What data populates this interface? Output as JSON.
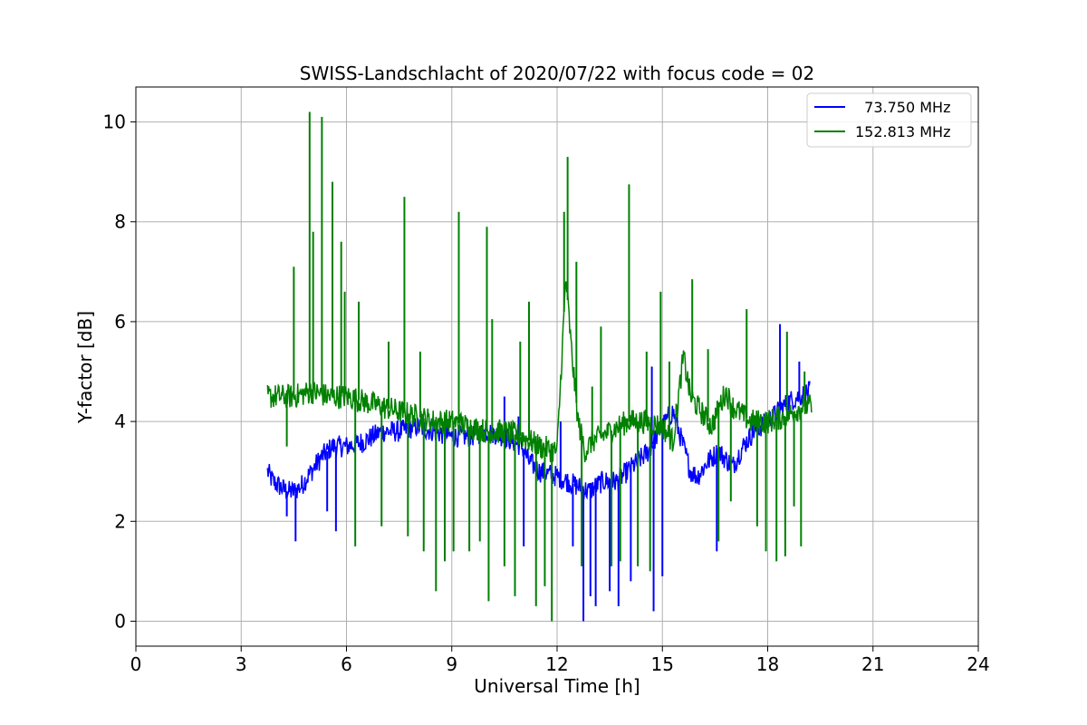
{
  "chart_data": {
    "type": "line",
    "title": "SWISS-Landschlacht of 2020/07/22 with focus code = 02",
    "xlabel": "Universal Time [h]",
    "ylabel": "Y-factor [dB]",
    "xlim": [
      0,
      24
    ],
    "ylim": [
      -0.5,
      10.7
    ],
    "xticks": [
      0,
      3,
      6,
      9,
      12,
      15,
      18,
      21,
      24
    ],
    "xtick_labels": [
      "0",
      "3",
      "6",
      "9",
      "12",
      "15",
      "18",
      "21",
      "24"
    ],
    "yticks": [
      0,
      2,
      4,
      6,
      8,
      10
    ],
    "ytick_labels": [
      "0",
      "2",
      "4",
      "6",
      "8",
      "10"
    ],
    "grid": true,
    "legend_position": "top-right",
    "series": [
      {
        "name": "  73.750 MHz",
        "color": "#0000ff",
        "x": [
          3.75,
          3.9,
          4.1,
          4.3,
          4.5,
          4.7,
          5.0,
          5.3,
          5.6,
          6.0,
          6.5,
          7.0,
          7.5,
          8.0,
          8.5,
          9.0,
          9.5,
          10.0,
          10.5,
          11.0,
          11.2,
          11.5,
          12.0,
          12.3,
          12.6,
          12.9,
          13.3,
          13.7,
          14.0,
          14.3,
          14.6,
          14.9,
          15.3,
          15.6,
          15.8,
          16.0,
          16.3,
          16.6,
          17.0,
          17.3,
          17.6,
          18.0,
          18.3,
          18.6,
          18.9,
          19.2
        ],
        "y": [
          3.0,
          2.8,
          2.7,
          2.6,
          2.6,
          2.7,
          3.0,
          3.3,
          3.5,
          3.5,
          3.6,
          3.8,
          3.8,
          3.9,
          3.8,
          3.7,
          3.7,
          3.8,
          3.7,
          3.5,
          3.2,
          3.0,
          2.9,
          2.8,
          2.7,
          2.6,
          2.8,
          2.8,
          3.0,
          3.2,
          3.4,
          3.8,
          4.2,
          3.5,
          3.0,
          2.9,
          3.2,
          3.4,
          3.1,
          3.5,
          3.8,
          4.0,
          4.2,
          4.4,
          4.5,
          4.6
        ],
        "spikes": [
          [
            4.55,
            1.6
          ],
          [
            4.3,
            2.1
          ],
          [
            5.45,
            2.2
          ],
          [
            5.7,
            1.8
          ],
          [
            10.5,
            4.5
          ],
          [
            10.9,
            4.1
          ],
          [
            11.05,
            1.5
          ],
          [
            12.1,
            4.0
          ],
          [
            12.45,
            1.5
          ],
          [
            12.75,
            0.0
          ],
          [
            13.1,
            0.3
          ],
          [
            13.5,
            0.6
          ],
          [
            13.75,
            0.3
          ],
          [
            14.1,
            0.8
          ],
          [
            14.7,
            5.1
          ],
          [
            14.75,
            0.2
          ],
          [
            15.2,
            4.8
          ],
          [
            16.55,
            1.4
          ],
          [
            18.35,
            5.95
          ],
          [
            18.9,
            5.2
          ],
          [
            15.0,
            0.9
          ],
          [
            12.95,
            0.5
          ]
        ]
      },
      {
        "name": "152.813 MHz",
        "color": "#008000",
        "x": [
          3.75,
          4.0,
          4.5,
          5.0,
          5.5,
          6.0,
          6.5,
          7.0,
          7.5,
          8.0,
          8.5,
          9.0,
          9.5,
          10.0,
          10.5,
          11.0,
          11.5,
          12.0,
          12.25,
          12.4,
          12.6,
          12.8,
          13.0,
          13.5,
          14.0,
          14.5,
          15.0,
          15.3,
          15.6,
          15.8,
          16.1,
          16.4,
          16.8,
          17.0,
          17.5,
          18.0,
          18.5,
          19.0,
          19.25
        ],
        "y": [
          4.5,
          4.5,
          4.5,
          4.6,
          4.5,
          4.5,
          4.4,
          4.3,
          4.2,
          4.1,
          4.0,
          4.0,
          3.9,
          3.8,
          3.8,
          3.7,
          3.5,
          3.4,
          6.9,
          5.5,
          4.0,
          3.4,
          3.6,
          3.8,
          4.0,
          4.0,
          3.9,
          3.6,
          5.3,
          4.5,
          4.2,
          3.9,
          4.6,
          4.3,
          4.0,
          4.0,
          4.1,
          4.3,
          4.3
        ],
        "spikes": [
          [
            4.95,
            10.2
          ],
          [
            5.3,
            10.1
          ],
          [
            5.05,
            7.8
          ],
          [
            5.6,
            8.8
          ],
          [
            5.85,
            7.6
          ],
          [
            4.5,
            7.1
          ],
          [
            4.3,
            3.5
          ],
          [
            5.95,
            6.6
          ],
          [
            6.35,
            6.4
          ],
          [
            6.25,
            1.5
          ],
          [
            7.0,
            1.9
          ],
          [
            7.2,
            5.6
          ],
          [
            7.65,
            8.5
          ],
          [
            7.75,
            1.7
          ],
          [
            8.1,
            5.4
          ],
          [
            8.2,
            1.4
          ],
          [
            8.55,
            0.6
          ],
          [
            8.8,
            1.2
          ],
          [
            9.05,
            1.4
          ],
          [
            9.2,
            8.2
          ],
          [
            9.5,
            1.4
          ],
          [
            9.8,
            1.6
          ],
          [
            10.0,
            7.9
          ],
          [
            10.05,
            0.4
          ],
          [
            10.15,
            6.05
          ],
          [
            10.5,
            1.1
          ],
          [
            10.8,
            0.5
          ],
          [
            10.95,
            5.6
          ],
          [
            11.2,
            6.4
          ],
          [
            11.4,
            0.3
          ],
          [
            11.65,
            0.7
          ],
          [
            11.85,
            0.0
          ],
          [
            12.2,
            8.2
          ],
          [
            12.3,
            9.3
          ],
          [
            12.55,
            7.2
          ],
          [
            12.7,
            1.1
          ],
          [
            13.0,
            4.7
          ],
          [
            13.25,
            5.9
          ],
          [
            13.55,
            1.1
          ],
          [
            13.8,
            1.2
          ],
          [
            14.05,
            8.75
          ],
          [
            14.3,
            1.1
          ],
          [
            14.55,
            5.4
          ],
          [
            14.65,
            1.0
          ],
          [
            14.95,
            6.6
          ],
          [
            15.2,
            5.2
          ],
          [
            15.85,
            6.85
          ],
          [
            16.3,
            5.45
          ],
          [
            16.6,
            1.6
          ],
          [
            16.95,
            2.4
          ],
          [
            17.2,
            4.2
          ],
          [
            17.4,
            6.25
          ],
          [
            17.7,
            1.9
          ],
          [
            17.95,
            1.4
          ],
          [
            18.25,
            1.2
          ],
          [
            18.5,
            1.3
          ],
          [
            18.55,
            5.8
          ],
          [
            18.75,
            2.3
          ],
          [
            18.95,
            1.5
          ],
          [
            19.05,
            5.0
          ]
        ]
      }
    ]
  }
}
